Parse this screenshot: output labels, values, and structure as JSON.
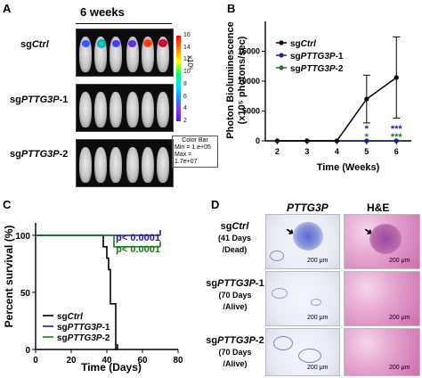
{
  "panels": {
    "a": "A",
    "b": "B",
    "c": "C",
    "d": "D"
  },
  "panelA": {
    "title": "6 weeks",
    "rows": [
      {
        "pre": "sg",
        "italic": "Ctrl",
        "post": ""
      },
      {
        "pre": "sg",
        "italic": "PTTG3P",
        "post": "-1"
      },
      {
        "pre": "sg",
        "italic": "PTTG3P",
        "post": "-2"
      }
    ],
    "colorbar_ticks": [
      "16",
      "14",
      "12",
      "10",
      "8",
      "6",
      "4",
      "2"
    ],
    "colorbar_unit": "x10⁶",
    "legend": {
      "title": "Color Bar",
      "min": "Min = 1.e+05",
      "max": "Max = 1.7e+07"
    }
  },
  "chart_data": [
    {
      "type": "line",
      "panel": "B",
      "ylabel_line1": "Photon Bioluminescence",
      "ylabel_line2": "(x10⁵ photons/sec)",
      "xlabel": "Time (Weeks)",
      "x": [
        2,
        3,
        4,
        5,
        6
      ],
      "xlim": [
        1.6,
        6.5
      ],
      "ylim": [
        0,
        20000
      ],
      "yticks": [
        "0",
        "5000",
        "10000",
        "15000"
      ],
      "yticks_values": [
        0,
        5000,
        10000,
        15000
      ],
      "series": [
        {
          "name": "sgCtrl",
          "name_pre": "sg",
          "name_italic": "Ctrl",
          "name_post": "",
          "color": "#000000",
          "values": [
            0,
            0,
            0,
            7000,
            10600
          ],
          "err": [
            0,
            0,
            0,
            4000,
            6800
          ]
        },
        {
          "name": "sgPTTG3P-1",
          "name_pre": "sg",
          "name_italic": "PTTG3P",
          "name_post": "-1",
          "color": "#1f1f9e",
          "values": [
            0,
            0,
            0,
            0,
            0
          ],
          "err": [
            0,
            0,
            0,
            0,
            0
          ]
        },
        {
          "name": "sgPTTG3P-2",
          "name_pre": "sg",
          "name_italic": "PTTG3P",
          "name_post": "-2",
          "color": "#1e7a1e",
          "values": [
            0,
            0,
            0,
            0,
            0
          ],
          "err": [
            0,
            0,
            0,
            0,
            0
          ]
        }
      ],
      "annotations": [
        {
          "x": 5,
          "text": "*",
          "color": "#1f1f9e",
          "row": 0
        },
        {
          "x": 5,
          "text": "*",
          "color": "#1e7a1e",
          "row": 1
        },
        {
          "x": 6,
          "text": "***",
          "color": "#1f1f9e",
          "row": 0
        },
        {
          "x": 6,
          "text": "***",
          "color": "#1e7a1e",
          "row": 1
        }
      ]
    },
    {
      "type": "line",
      "panel": "C",
      "ylabel": "Percent survival (%)",
      "xlabel": "Time (Days)",
      "xlim": [
        0,
        80
      ],
      "ylim": [
        0,
        100
      ],
      "xticks": [
        "0",
        "20",
        "40",
        "60",
        "80"
      ],
      "xticks_values": [
        0,
        20,
        40,
        60,
        80
      ],
      "yticks": [
        "0",
        "50",
        "100"
      ],
      "yticks_values": [
        0,
        50,
        100
      ],
      "series": [
        {
          "name": "sgCtrl",
          "name_pre": "sg",
          "name_italic": "Ctrl",
          "name_post": "",
          "color": "#000000",
          "steps": [
            [
              0,
              100
            ],
            [
              38,
              100
            ],
            [
              38,
              90
            ],
            [
              40,
              90
            ],
            [
              40,
              80
            ],
            [
              41,
              80
            ],
            [
              41,
              70
            ],
            [
              42,
              70
            ],
            [
              42,
              40
            ],
            [
              45,
              40
            ],
            [
              45,
              0
            ],
            [
              46,
              0
            ]
          ]
        },
        {
          "name": "sgPTTG3P-1",
          "name_pre": "sg",
          "name_italic": "PTTG3P",
          "name_post": "-1",
          "color": "#1f1f9e",
          "steps": [
            [
              0,
              100
            ],
            [
              70,
              100
            ]
          ]
        },
        {
          "name": "sgPTTG3P-2",
          "name_pre": "sg",
          "name_italic": "PTTG3P",
          "name_post": "-2",
          "color": "#1e7a1e",
          "steps": [
            [
              0,
              100
            ],
            [
              44,
              100
            ],
            [
              44,
              90
            ],
            [
              70,
              90
            ]
          ]
        }
      ],
      "annotations": [
        {
          "text": "p< 0.0001",
          "color": "#1f1f9e"
        },
        {
          "text": "p< 0.0001",
          "color": "#1e7a1e"
        }
      ]
    }
  ],
  "panelD": {
    "col1": "PTTG3P",
    "col2": "H&E",
    "rows": [
      {
        "pre": "sg",
        "italic": "Ctrl",
        "post": "",
        "sub1": "(41 Days",
        "sub2": "/Dead)"
      },
      {
        "pre": "sg",
        "italic": "PTTG3P",
        "post": "-1",
        "sub1": "(70 Days",
        "sub2": "/Alive)"
      },
      {
        "pre": "sg",
        "italic": "PTTG3P",
        "post": "-2",
        "sub1": "(70 Days",
        "sub2": "/Alive)"
      }
    ],
    "scalebar": "200 μm"
  }
}
